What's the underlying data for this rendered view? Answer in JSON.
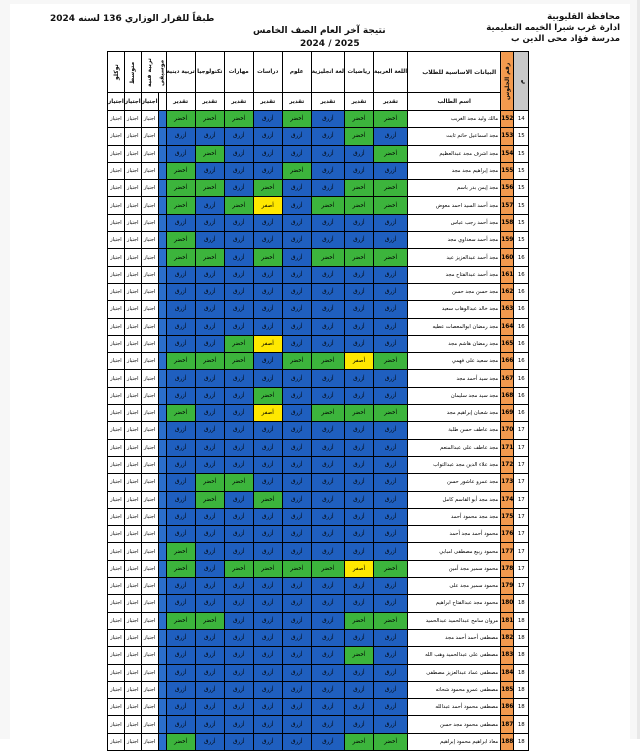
{
  "header": {
    "gov": "محافظة القليوبية",
    "admin": "ادارة غرب شبرا الخيمه التعليمية",
    "school": "مدرسة فؤاد محى الدين ب",
    "title": "نتيجة آخر العام الصف الخامس",
    "year": "2025 / 2024",
    "decree": "طبقاً للقرار الوزاري 136 لسنه 2024"
  },
  "table": {
    "col_headers": {
      "no": "م",
      "code": "رقم الجلوس",
      "basic": "البيانات الاساسية للطلاب",
      "name": "اسم الطالب",
      "arabic": "اللغة العربية",
      "math": "رياضيات",
      "english": "لغة انجليزية",
      "science": "علوم",
      "social": "دراسات",
      "skills": "مهارات",
      "tech": "تكنولوجيا",
      "religion": "تربية دينية",
      "art": "تربية فنية",
      "music": "موسيقى",
      "avg": "متوسط",
      "total": "توكلو",
      "sub_grade": "تقدير",
      "sub_pass": "اجتياز"
    },
    "grade_labels": {
      "g": "أخضر",
      "b": "أزرق",
      "y": "أصفر",
      "w": ""
    },
    "colors": {
      "green": "#3cb43c",
      "blue": "#1f5fbf",
      "yellow": "#ffe800",
      "orange": "#f39a4e"
    },
    "rows": [
      {
        "no": "14",
        "code": "152",
        "name": "مالك وليد مجد الغريب",
        "g": [
          "g",
          "g",
          "b",
          "g",
          "b",
          "g",
          "g",
          "g"
        ],
        "p": [
          "اجتياز",
          "اجتياز",
          "اجتياز"
        ]
      },
      {
        "no": "15",
        "code": "153",
        "name": "مجد اسماعيل حاتم ثابت",
        "g": [
          "b",
          "g",
          "b",
          "b",
          "b",
          "b",
          "b",
          "b"
        ],
        "p": [
          "اجتياز",
          "اجتياز",
          "اجتياز"
        ]
      },
      {
        "no": "15",
        "code": "154",
        "name": "مجد اشرف مجد عبدالعظيم",
        "g": [
          "g",
          "b",
          "b",
          "b",
          "b",
          "b",
          "g",
          "b"
        ],
        "p": [
          "اجتياز",
          "اجتياز",
          "اجتياز"
        ]
      },
      {
        "no": "15",
        "code": "155",
        "name": "مجد إبراهيم مجد مجد",
        "g": [
          "b",
          "b",
          "b",
          "g",
          "b",
          "b",
          "b",
          "g"
        ],
        "p": [
          "اجتياز",
          "اجتياز",
          "اجتياز"
        ]
      },
      {
        "no": "15",
        "code": "156",
        "name": "مجد إيمن بدر باسم",
        "g": [
          "g",
          "g",
          "b",
          "b",
          "g",
          "b",
          "g",
          "g"
        ],
        "p": [
          "اجتياز",
          "اجتياز",
          "اجتياز"
        ]
      },
      {
        "no": "15",
        "code": "157",
        "name": "مجد أحمد السيد احمد معوض",
        "g": [
          "g",
          "g",
          "g",
          "b",
          "y",
          "g",
          "b",
          "g"
        ],
        "p": [
          "اجتياز",
          "اجتياز",
          "اجتياز"
        ]
      },
      {
        "no": "15",
        "code": "158",
        "name": "مجد أحمد رجب عباس",
        "g": [
          "b",
          "b",
          "b",
          "b",
          "b",
          "b",
          "b",
          "b"
        ],
        "p": [
          "اجتياز",
          "اجتياز",
          "اجتياز"
        ]
      },
      {
        "no": "15",
        "code": "159",
        "name": "مجد أحمد سعداوي مجد",
        "g": [
          "b",
          "b",
          "b",
          "b",
          "b",
          "b",
          "b",
          "g"
        ],
        "p": [
          "اجتياز",
          "اجتياز",
          "اجتياز"
        ]
      },
      {
        "no": "16",
        "code": "160",
        "name": "مجد أحمد عبدالعزيز عيد",
        "g": [
          "g",
          "g",
          "g",
          "b",
          "g",
          "b",
          "g",
          "g"
        ],
        "p": [
          "اجتياز",
          "اجتياز",
          "اجتياز"
        ]
      },
      {
        "no": "16",
        "code": "161",
        "name": "مجد أحمد عبدالفتاح مجد",
        "g": [
          "b",
          "b",
          "b",
          "b",
          "b",
          "b",
          "b",
          "b"
        ],
        "p": [
          "اجتياز",
          "اجتياز",
          "اجتياز"
        ]
      },
      {
        "no": "16",
        "code": "162",
        "name": "مجد حسن مجد حسن",
        "g": [
          "b",
          "b",
          "b",
          "b",
          "b",
          "b",
          "b",
          "b"
        ],
        "p": [
          "اجتياز",
          "اجتياز",
          "اجتياز"
        ]
      },
      {
        "no": "16",
        "code": "163",
        "name": "مجد خالد عبدالوهاب سعيد",
        "g": [
          "b",
          "b",
          "b",
          "b",
          "b",
          "b",
          "b",
          "b"
        ],
        "p": [
          "اجتياز",
          "اجتياز",
          "اجتياز"
        ]
      },
      {
        "no": "16",
        "code": "164",
        "name": "مجد رمضان ابوالمعصات عطيه",
        "g": [
          "b",
          "b",
          "b",
          "b",
          "b",
          "b",
          "b",
          "b"
        ],
        "p": [
          "اجتياز",
          "اجتياز",
          "اجتياز"
        ]
      },
      {
        "no": "16",
        "code": "165",
        "name": "مجد رمضان هاشم مجد",
        "g": [
          "b",
          "b",
          "b",
          "b",
          "y",
          "g",
          "b",
          "b"
        ],
        "p": [
          "اجتياز",
          "اجتياز",
          "اجتياز"
        ]
      },
      {
        "no": "16",
        "code": "166",
        "name": "مجد سعيد على فهمي",
        "g": [
          "g",
          "y",
          "g",
          "g",
          "b",
          "g",
          "g",
          "g"
        ],
        "p": [
          "اجتياز",
          "اجتياز",
          "اجتياز"
        ]
      },
      {
        "no": "16",
        "code": "167",
        "name": "مجد سيد أحمد مجد",
        "g": [
          "b",
          "b",
          "b",
          "b",
          "b",
          "b",
          "b",
          "b"
        ],
        "p": [
          "اجتياز",
          "اجتياز",
          "اجتياز"
        ]
      },
      {
        "no": "16",
        "code": "168",
        "name": "مجد سيد مجد سليمان",
        "g": [
          "b",
          "b",
          "b",
          "b",
          "g",
          "b",
          "b",
          "b"
        ],
        "p": [
          "اجتياز",
          "اجتياز",
          "اجتياز"
        ]
      },
      {
        "no": "16",
        "code": "169",
        "name": "مجد شعبان إبراهيم مجد",
        "g": [
          "g",
          "g",
          "g",
          "b",
          "y",
          "b",
          "b",
          "g"
        ],
        "p": [
          "اجتياز",
          "اجتياز",
          "اجتياز"
        ]
      },
      {
        "no": "17",
        "code": "170",
        "name": "مجد عاطف حسن طلبة",
        "g": [
          "b",
          "b",
          "b",
          "b",
          "b",
          "b",
          "b",
          "b"
        ],
        "p": [
          "اجتياز",
          "اجتياز",
          "اجتياز"
        ]
      },
      {
        "no": "17",
        "code": "171",
        "name": "مجد عاطف على عبدالمنعم",
        "g": [
          "b",
          "b",
          "b",
          "b",
          "b",
          "b",
          "b",
          "b"
        ],
        "p": [
          "اجتياز",
          "اجتياز",
          "اجتياز"
        ]
      },
      {
        "no": "17",
        "code": "172",
        "name": "مجد علاء الدين مجد عبدالتواب",
        "g": [
          "b",
          "b",
          "b",
          "b",
          "b",
          "b",
          "b",
          "b"
        ],
        "p": [
          "اجتياز",
          "اجتياز",
          "اجتياز"
        ]
      },
      {
        "no": "17",
        "code": "173",
        "name": "مجد عمرو عاشور حسن",
        "g": [
          "b",
          "b",
          "b",
          "b",
          "b",
          "g",
          "g",
          "b"
        ],
        "p": [
          "اجتياز",
          "اجتياز",
          "اجتياز"
        ]
      },
      {
        "no": "17",
        "code": "174",
        "name": "مجد مجد أبو القاسم كامل",
        "g": [
          "b",
          "b",
          "b",
          "b",
          "g",
          "b",
          "g",
          "b"
        ],
        "p": [
          "اجتياز",
          "اجتياز",
          "اجتياز"
        ]
      },
      {
        "no": "17",
        "code": "175",
        "name": "مجد مجد محمود أحمد",
        "g": [
          "b",
          "b",
          "b",
          "b",
          "b",
          "b",
          "b",
          "b"
        ],
        "p": [
          "اجتياز",
          "اجتياز",
          "اجتياز"
        ]
      },
      {
        "no": "17",
        "code": "176",
        "name": "محمود أحمد مجد أحمد",
        "g": [
          "b",
          "b",
          "b",
          "b",
          "b",
          "b",
          "b",
          "b"
        ],
        "p": [
          "اجتياز",
          "اجتياز",
          "اجتياز"
        ]
      },
      {
        "no": "17",
        "code": "177",
        "name": "محمود ربيع مصطفى امبابي",
        "g": [
          "b",
          "b",
          "b",
          "b",
          "b",
          "b",
          "b",
          "g"
        ],
        "p": [
          "اجتياز",
          "اجتياز",
          "اجتياز"
        ]
      },
      {
        "no": "17",
        "code": "178",
        "name": "محمود سمير مجد أمين",
        "g": [
          "g",
          "y",
          "g",
          "g",
          "g",
          "g",
          "b",
          "g"
        ],
        "p": [
          "اجتياز",
          "اجتياز",
          "اجتياز"
        ]
      },
      {
        "no": "17",
        "code": "179",
        "name": "محمود سمير مجد على",
        "g": [
          "b",
          "b",
          "b",
          "b",
          "b",
          "b",
          "b",
          "b"
        ],
        "p": [
          "اجتياز",
          "اجتياز",
          "اجتياز"
        ]
      },
      {
        "no": "18",
        "code": "180",
        "name": "محمود مجد عبدالفتاح ابراهيم",
        "g": [
          "b",
          "b",
          "b",
          "b",
          "b",
          "b",
          "b",
          "b"
        ],
        "p": [
          "اجتياز",
          "اجتياز",
          "اجتياز"
        ]
      },
      {
        "no": "18",
        "code": "181",
        "name": "مروان سامح عبدالحميد عبدالحميد",
        "g": [
          "g",
          "g",
          "b",
          "b",
          "b",
          "b",
          "g",
          "g"
        ],
        "p": [
          "اجتياز",
          "اجتياز",
          "اجتياز"
        ]
      },
      {
        "no": "18",
        "code": "182",
        "name": "مصطفى أحمد أحمد مجد",
        "g": [
          "b",
          "b",
          "b",
          "b",
          "b",
          "b",
          "b",
          "b"
        ],
        "p": [
          "اجتياز",
          "اجتياز",
          "اجتياز"
        ]
      },
      {
        "no": "18",
        "code": "183",
        "name": "مصطفى على عبدالحميد وهب الله",
        "g": [
          "b",
          "g",
          "b",
          "b",
          "b",
          "b",
          "b",
          "b"
        ],
        "p": [
          "اجتياز",
          "اجتياز",
          "اجتياز"
        ]
      },
      {
        "no": "18",
        "code": "184",
        "name": "مصطفى عماد عبدالعزيز مصطفى",
        "g": [
          "b",
          "b",
          "b",
          "b",
          "b",
          "b",
          "b",
          "b"
        ],
        "p": [
          "اجتياز",
          "اجتياز",
          "اجتياز"
        ]
      },
      {
        "no": "18",
        "code": "185",
        "name": "مصطفى عمرو محمود شحاته",
        "g": [
          "b",
          "b",
          "b",
          "b",
          "b",
          "b",
          "b",
          "b"
        ],
        "p": [
          "اجتياز",
          "اجتياز",
          "اجتياز"
        ]
      },
      {
        "no": "18",
        "code": "186",
        "name": "مصطفى محمود أحمد عبدالله",
        "g": [
          "b",
          "b",
          "b",
          "b",
          "b",
          "b",
          "b",
          "b"
        ],
        "p": [
          "اجتياز",
          "اجتياز",
          "اجتياز"
        ]
      },
      {
        "no": "18",
        "code": "187",
        "name": "مصطفى محمود مجد حسن",
        "g": [
          "b",
          "b",
          "b",
          "b",
          "b",
          "b",
          "b",
          "b"
        ],
        "p": [
          "اجتياز",
          "اجتياز",
          "اجتياز"
        ]
      },
      {
        "no": "18",
        "code": "188",
        "name": "معاذ ابراهيم محمود إبراهيم",
        "g": [
          "g",
          "g",
          "b",
          "b",
          "b",
          "b",
          "b",
          "g"
        ],
        "p": [
          "اجتياز",
          "اجتياز",
          "اجتياز"
        ]
      }
    ]
  }
}
